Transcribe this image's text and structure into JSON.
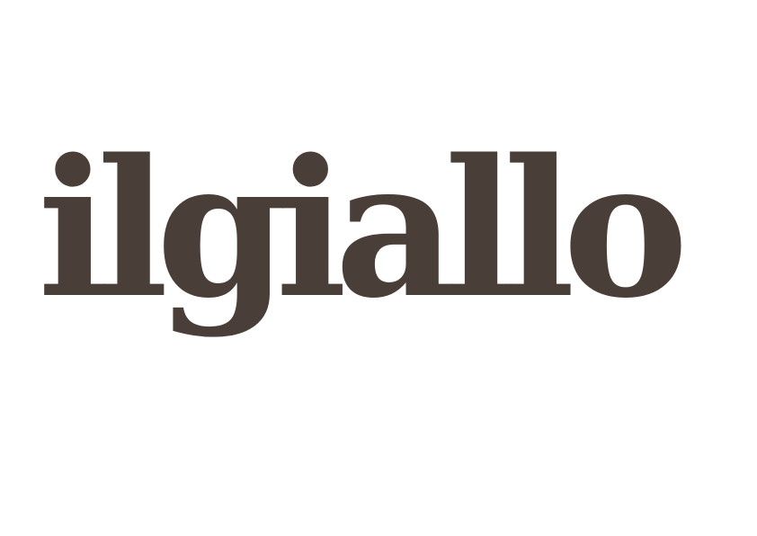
{
  "logo": {
    "text": "ilgiallo",
    "color": "#4a3e39"
  },
  "background_color": "#ffffff"
}
